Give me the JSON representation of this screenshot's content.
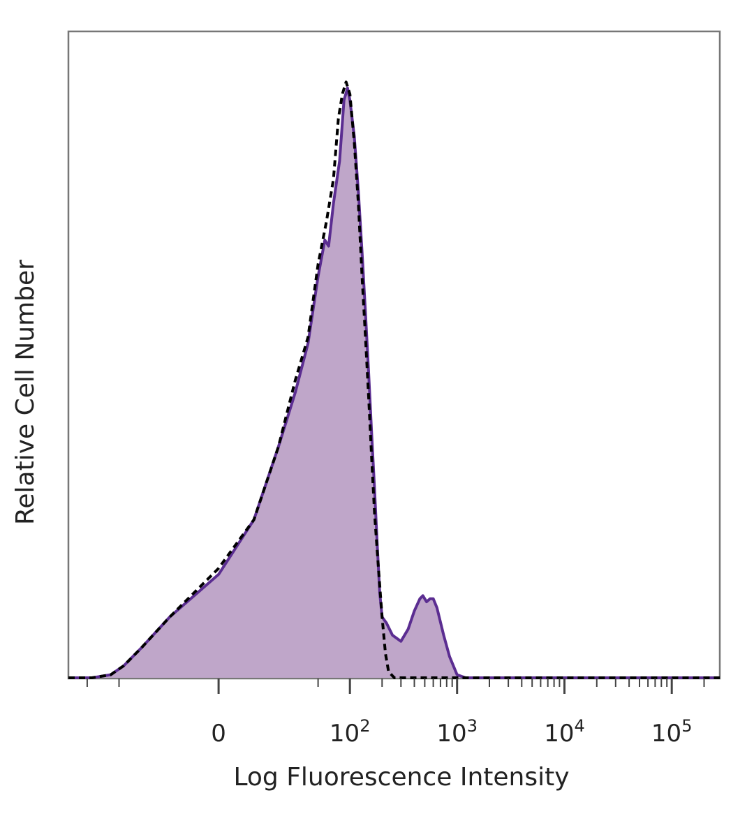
{
  "chart_data": {
    "type": "area",
    "title": "",
    "xlabel": "Log Fluorescence Intensity",
    "ylabel": "Relative Cell Number",
    "x_scale": "biexponential",
    "xlim": [
      -150,
      280000
    ],
    "ylim": [
      0,
      100
    ],
    "x_tick_labels": [
      {
        "value": 0,
        "label": "0"
      },
      {
        "value": 100,
        "label": "10",
        "exp": "2"
      },
      {
        "value": 1000,
        "label": "10",
        "exp": "3"
      },
      {
        "value": 10000,
        "label": "10",
        "exp": "4"
      },
      {
        "value": 100000,
        "label": "10",
        "exp": "5"
      }
    ],
    "grid": false,
    "legend": "none",
    "colors": {
      "stained_fill": "#bfa6c9",
      "stained_line": "#5b2d91",
      "control_line": "#000000"
    },
    "series": [
      {
        "style": "filled-solid",
        "points": [
          [
            -150,
            0
          ],
          [
            -90,
            0
          ],
          [
            -60,
            0.5
          ],
          [
            -45,
            2
          ],
          [
            -30,
            5
          ],
          [
            -15,
            10
          ],
          [
            0,
            17
          ],
          [
            10,
            26
          ],
          [
            20,
            38
          ],
          [
            30,
            47
          ],
          [
            40,
            55
          ],
          [
            50,
            66
          ],
          [
            58,
            72
          ],
          [
            63,
            71
          ],
          [
            70,
            78
          ],
          [
            80,
            85
          ],
          [
            88,
            95
          ],
          [
            95,
            97
          ],
          [
            100,
            95
          ],
          [
            110,
            89
          ],
          [
            120,
            80
          ],
          [
            130,
            70
          ],
          [
            140,
            60
          ],
          [
            150,
            50
          ],
          [
            160,
            40
          ],
          [
            170,
            31
          ],
          [
            180,
            22
          ],
          [
            190,
            14
          ],
          [
            200,
            10
          ],
          [
            220,
            9
          ],
          [
            250,
            7
          ],
          [
            300,
            6
          ],
          [
            350,
            8
          ],
          [
            400,
            11
          ],
          [
            450,
            13
          ],
          [
            480,
            13.5
          ],
          [
            520,
            12.5
          ],
          [
            560,
            13
          ],
          [
            600,
            13
          ],
          [
            650,
            11.5
          ],
          [
            750,
            7
          ],
          [
            850,
            3.5
          ],
          [
            1000,
            0.5
          ],
          [
            1200,
            0
          ],
          [
            280000,
            0
          ]
        ]
      },
      {
        "style": "dashed",
        "points": [
          [
            -150,
            0
          ],
          [
            -90,
            0
          ],
          [
            -60,
            0.5
          ],
          [
            -45,
            2
          ],
          [
            -30,
            5
          ],
          [
            -15,
            10
          ],
          [
            0,
            18
          ],
          [
            10,
            26
          ],
          [
            20,
            38
          ],
          [
            30,
            49
          ],
          [
            40,
            56
          ],
          [
            50,
            68
          ],
          [
            60,
            75
          ],
          [
            70,
            82
          ],
          [
            78,
            92
          ],
          [
            85,
            96
          ],
          [
            92,
            98
          ],
          [
            100,
            96
          ],
          [
            110,
            88
          ],
          [
            120,
            78
          ],
          [
            130,
            66
          ],
          [
            140,
            56
          ],
          [
            150,
            46
          ],
          [
            160,
            36
          ],
          [
            170,
            27
          ],
          [
            185,
            18
          ],
          [
            200,
            10
          ],
          [
            215,
            4
          ],
          [
            230,
            1
          ],
          [
            260,
            0
          ],
          [
            280000,
            0
          ]
        ]
      }
    ]
  }
}
